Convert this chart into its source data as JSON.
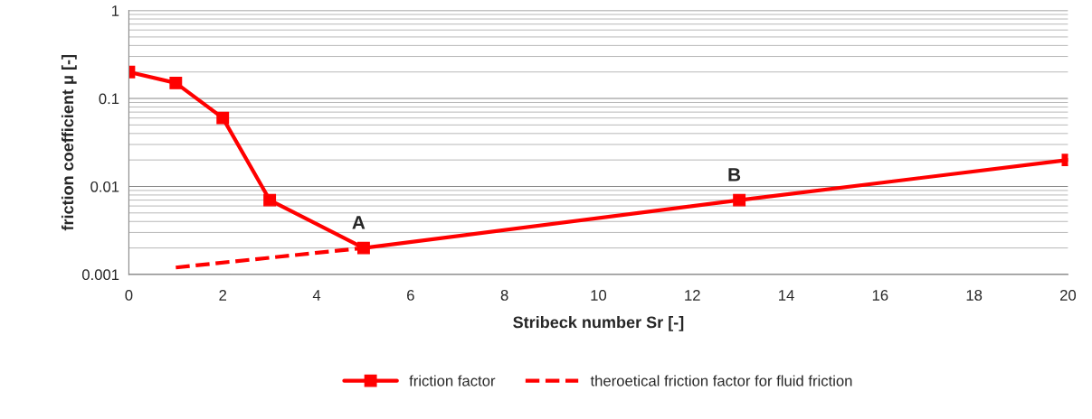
{
  "chart_data": {
    "type": "line",
    "xlabel": "Stribeck number Sr [-]",
    "ylabel": "friction coefficient μ [-]",
    "series": [
      {
        "name": "friction factor",
        "color": "#ff0000",
        "marker": "square",
        "line_style": "solid",
        "x": [
          0,
          1,
          2,
          3,
          5,
          13,
          20
        ],
        "values": [
          0.2,
          0.15,
          0.06,
          0.007,
          0.002,
          0.007,
          0.02
        ]
      },
      {
        "name": "theroetical friction factor for fluid friction",
        "color": "#ff0000",
        "marker": "none",
        "line_style": "dashed",
        "x": [
          1,
          5
        ],
        "values": [
          0.0012,
          0.002
        ]
      }
    ],
    "log": "y",
    "xlim": [
      0,
      20
    ],
    "xticks": [
      0,
      2,
      4,
      6,
      8,
      10,
      12,
      14,
      16,
      18,
      20
    ],
    "ylim": [
      0.001,
      1
    ],
    "yticks": [
      {
        "value": 0.001,
        "label": "0.001"
      },
      {
        "value": 0.01,
        "label": "0.01"
      },
      {
        "value": 0.1,
        "label": "0.1"
      },
      {
        "value": 1,
        "label": "1"
      }
    ],
    "grid": "y",
    "legend": "bottom",
    "annotations": [
      {
        "text": "A",
        "x": 5,
        "y": 0.002
      },
      {
        "text": "B",
        "x": 13,
        "y": 0.007
      }
    ]
  }
}
